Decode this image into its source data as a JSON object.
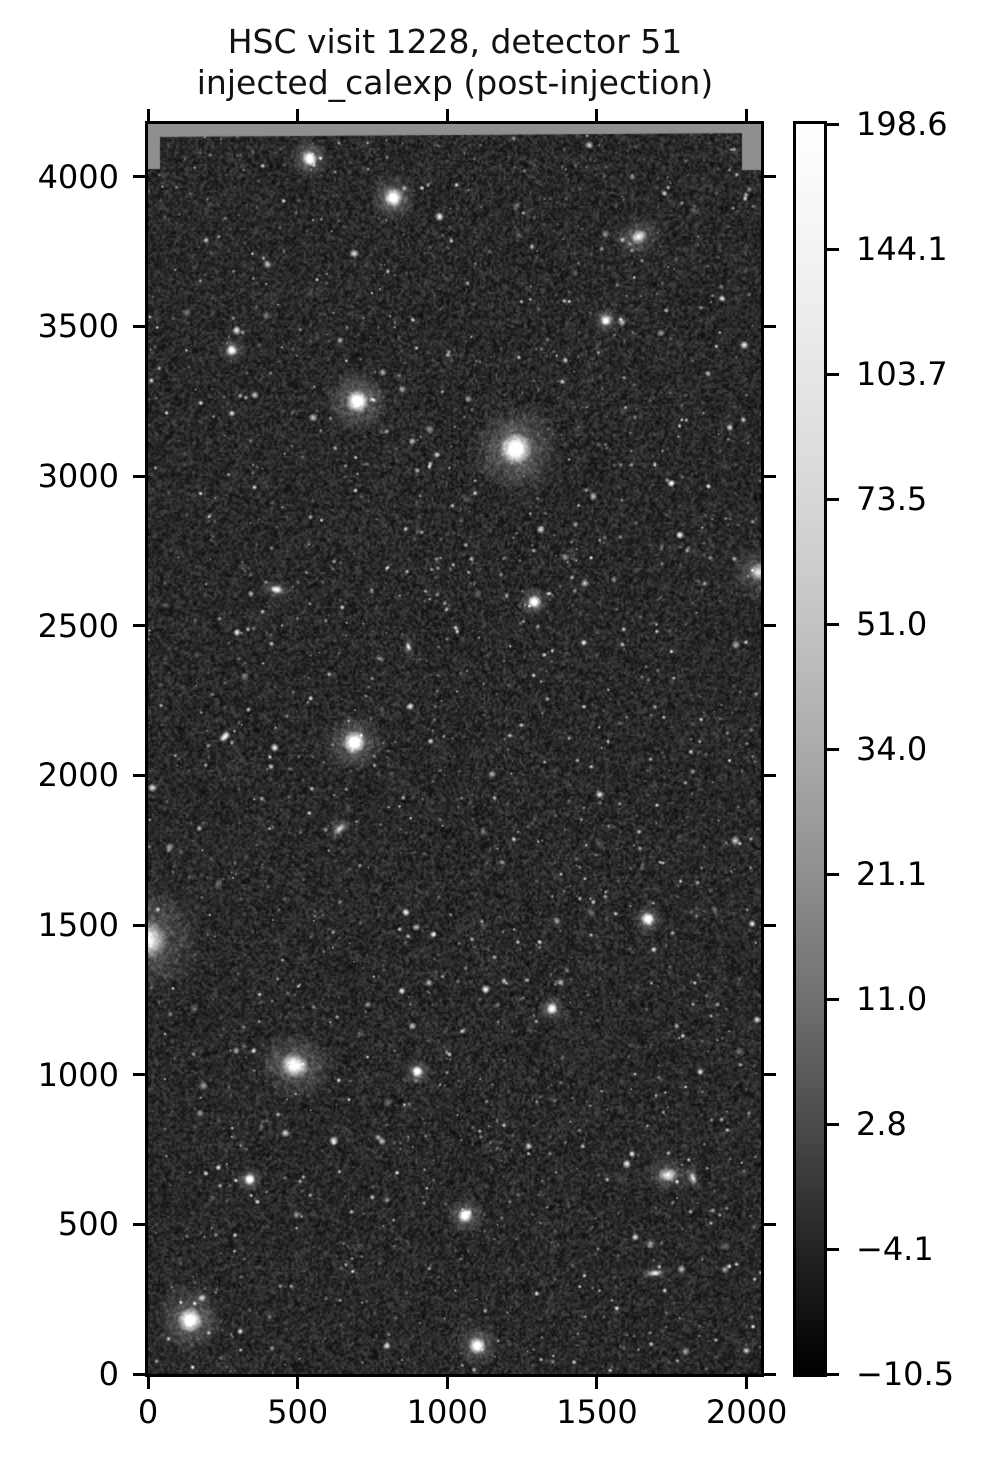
{
  "figure": {
    "title_line1": "HSC visit 1228, detector 51",
    "title_line2": "injected_calexp (post-injection)"
  },
  "chart_data": {
    "type": "heatmap",
    "subtype": "astronomical-image (imshow, origin lower, gray colormap)",
    "title": "HSC visit 1228, detector 51\ninjected_calexp (post-injection)",
    "xlabel": "",
    "ylabel": "",
    "xlim": [
      0,
      2048
    ],
    "ylim": [
      0,
      4176
    ],
    "x_tick_values": [
      0,
      500,
      1000,
      1500,
      2000
    ],
    "x_tick_labels": [
      "0",
      "500",
      "1000",
      "1500",
      "2000"
    ],
    "y_tick_values": [
      0,
      500,
      1000,
      1500,
      2000,
      2500,
      3000,
      3500,
      4000
    ],
    "y_tick_labels": [
      "0",
      "500",
      "1000",
      "1500",
      "2000",
      "2500",
      "3000",
      "3500",
      "4000"
    ],
    "grid": false,
    "ticks_on_all_sides": true,
    "colormap": "gray",
    "colorbar": {
      "position": "right",
      "tick_labels": [
        "198.6",
        "144.1",
        "103.7",
        "73.5",
        "51.0",
        "34.0",
        "21.1",
        "11.0",
        "2.8",
        "−4.1",
        "−10.5"
      ],
      "vmax_label": "198.6",
      "vmin_label": "−10.5",
      "note": "ticks evenly spaced along bar (asinh/zscale-like stretch)"
    },
    "image_content": "dense star/galaxy field on dark noisy sky; flat gray masked band along top edge with wedges at top-left and top-right corners",
    "render": {
      "seed": 20240517,
      "background_base": 42,
      "sigma_fine": 14,
      "sigma_coarse": 30,
      "faint_count": 1150,
      "medium_count": 170,
      "ellipse_count": 70,
      "defect_column": {
        "x": 1012,
        "y1": 2870,
        "y2": 3260
      },
      "sources": [
        {
          "x": 1228,
          "y": 3090,
          "r": 17,
          "halo": 46,
          "b": 1.0,
          "type": "star"
        },
        {
          "x": 700,
          "y": 3250,
          "r": 12,
          "halo": 32,
          "b": 1.0,
          "type": "star"
        },
        {
          "x": 690,
          "y": 2110,
          "r": 12,
          "halo": 30,
          "b": 1.0,
          "type": "star"
        },
        {
          "x": 490,
          "y": 1030,
          "r": 15,
          "halo": 40,
          "b": 0.95,
          "type": "galaxy",
          "ell": 0.85,
          "ang": 20
        },
        {
          "x": 140,
          "y": 180,
          "r": 13,
          "halo": 34,
          "b": 0.98,
          "type": "star"
        },
        {
          "x": 820,
          "y": 3930,
          "r": 10,
          "halo": 24,
          "b": 1.0,
          "type": "star"
        },
        {
          "x": 540,
          "y": 4060,
          "r": 8,
          "halo": 20,
          "b": 1.0,
          "type": "star"
        },
        {
          "x": 1640,
          "y": 3800,
          "r": 9,
          "halo": 26,
          "b": 0.8,
          "type": "galaxy",
          "ell": 0.8,
          "ang": -30
        },
        {
          "x": 0,
          "y": 1450,
          "r": 20,
          "halo": 55,
          "b": 0.85,
          "type": "galaxy",
          "ell": 1,
          "ang": 0
        },
        {
          "x": 1100,
          "y": 95,
          "r": 9,
          "halo": 22,
          "b": 1.0,
          "type": "star"
        },
        {
          "x": 2040,
          "y": 2680,
          "r": 10,
          "halo": 30,
          "b": 0.7,
          "type": "galaxy",
          "ell": 1,
          "ang": 0
        },
        {
          "x": 1290,
          "y": 2580,
          "r": 7,
          "halo": 16,
          "b": 1.0,
          "type": "star"
        },
        {
          "x": 1670,
          "y": 1520,
          "r": 7,
          "halo": 16,
          "b": 1.0,
          "type": "star"
        },
        {
          "x": 1737,
          "y": 665,
          "r": 10,
          "halo": 26,
          "b": 0.8,
          "type": "galaxy",
          "ell": 0.75,
          "ang": 10
        },
        {
          "x": 1821,
          "y": 655,
          "r": 7,
          "halo": 15,
          "b": 0.75,
          "type": "galaxy",
          "ell": 0.45,
          "ang": 75
        },
        {
          "x": 1694,
          "y": 337,
          "r": 8,
          "halo": 18,
          "b": 0.8,
          "type": "galaxy",
          "ell": 0.4,
          "ang": -5
        },
        {
          "x": 900,
          "y": 1010,
          "r": 6,
          "halo": 14,
          "b": 1.0,
          "type": "star"
        },
        {
          "x": 1350,
          "y": 1220,
          "r": 6,
          "halo": 14,
          "b": 0.95,
          "type": "star"
        },
        {
          "x": 640,
          "y": 1820,
          "r": 8,
          "halo": 18,
          "b": 0.7,
          "type": "galaxy",
          "ell": 0.5,
          "ang": -40
        },
        {
          "x": 340,
          "y": 650,
          "r": 6,
          "halo": 14,
          "b": 0.95,
          "type": "star"
        },
        {
          "x": 1530,
          "y": 3520,
          "r": 6,
          "halo": 14,
          "b": 0.95,
          "type": "star"
        },
        {
          "x": 280,
          "y": 3420,
          "r": 6,
          "halo": 14,
          "b": 0.9,
          "type": "star"
        },
        {
          "x": 1060,
          "y": 530,
          "r": 8,
          "halo": 20,
          "b": 1.0,
          "type": "star"
        },
        {
          "x": 430,
          "y": 2620,
          "r": 7,
          "halo": 16,
          "b": 0.85,
          "type": "galaxy",
          "ell": 0.6,
          "ang": 15
        },
        {
          "x": 870,
          "y": 2430,
          "r": 6,
          "halo": 14,
          "b": 0.8,
          "type": "galaxy",
          "ell": 0.4,
          "ang": 80
        }
      ]
    }
  },
  "colors": {
    "background": "#ffffff",
    "spine": "#000000",
    "text": "#000000",
    "mask_gray": "#8f8f8f",
    "sky_dark": "#2a2a2a"
  }
}
